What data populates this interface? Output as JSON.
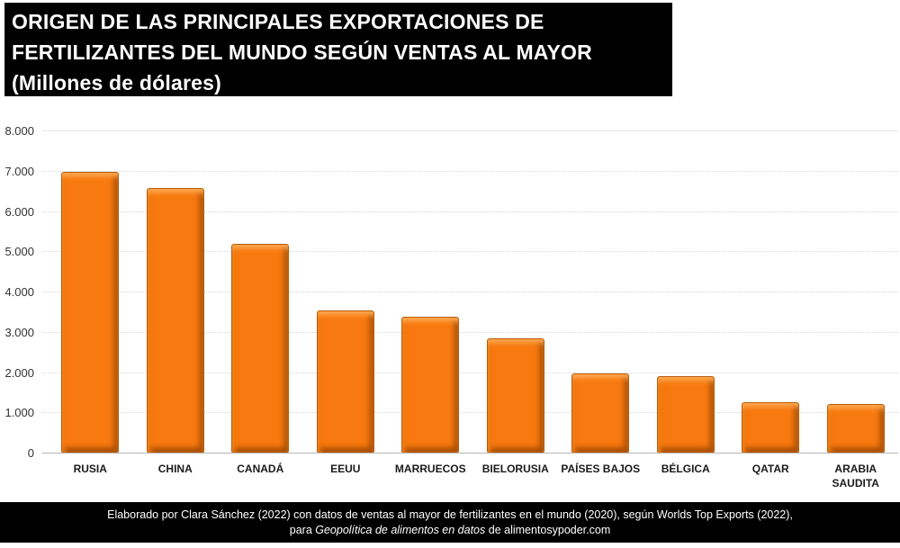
{
  "header": {
    "line1": "ORIGEN DE LAS PRINCIPALES EXPORTACIONES DE",
    "line2": "FERTILIZANTES DEL MUNDO SEGÚN VENTAS AL MAYOR",
    "line3": "(Millones de dólares)"
  },
  "chart_data": {
    "type": "bar",
    "title": "ORIGEN DE LAS PRINCIPALES EXPORTACIONES DE FERTILIZANTES DEL MUNDO SEGÚN VENTAS AL MAYOR",
    "subtitle": "(Millones de dólares)",
    "categories": [
      "RUSIA",
      "CHINA",
      "CANADÁ",
      "EEUU",
      "MARRUECOS",
      "BIELORUSIA",
      "PAÍSES BAJOS",
      "BÉLGICA",
      "QATAR",
      "ARABIA SAUDITA"
    ],
    "values": [
      6990,
      6600,
      5200,
      3560,
      3390,
      2870,
      2000,
      1930,
      1270,
      1220
    ],
    "x_display": [
      "RUSIA",
      "CHINA",
      "CANADÁ",
      "EEUU",
      "MARRUECOS",
      "BIELORUSIA",
      "PAÍSES BAJOS",
      "BÉLGICA",
      "QATAR",
      "ARABIA\nSAUDITA"
    ],
    "xlabel": "",
    "ylabel": "Millones de dólares",
    "ylim": [
      0,
      8000
    ],
    "yticks": [
      0,
      1000,
      2000,
      3000,
      4000,
      5000,
      6000,
      7000,
      8000
    ],
    "ytick_labels": [
      "0",
      "1.000",
      "2.000",
      "3.000",
      "4.000",
      "5.000",
      "6.000",
      "7.000",
      "8.000"
    ],
    "grid": "horizontal-dotted",
    "legend": "none",
    "bar_color": "#F8790F",
    "bar_edge_color": "#BB5A08"
  },
  "footer": {
    "line1": "Elaborado por Clara Sánchez (2022) con datos de ventas al mayor de fertilizantes en el mundo (2020), según Worlds Top Exports (2022),",
    "line2_prefix": "para ",
    "line2_italic": "Geopolítica de alimentos en datos",
    "line2_suffix": " de alimentosypoder.com"
  },
  "colors": {
    "title_bg": "#000000",
    "title_text": "#FFFFFF",
    "footer_bg": "#000000",
    "footer_text": "#FFFFFF",
    "gridline": "#D6D6D6",
    "axis_line": "#B5B5B5",
    "tick_text": "#333333",
    "category_text": "#1A1A1A",
    "background": "#FFFFFF"
  }
}
